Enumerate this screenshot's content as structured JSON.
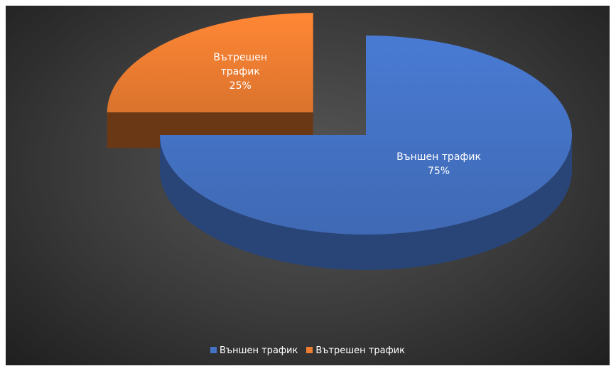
{
  "chart_data": {
    "type": "pie",
    "categories": [
      "Външен трафик",
      "Вътрешен трафик"
    ],
    "values": [
      75,
      25
    ],
    "value_labels": [
      "75%",
      "25%"
    ],
    "colors": [
      "#4472c4",
      "#ed7d31"
    ],
    "exploded": [
      false,
      true
    ],
    "legend": "bottom"
  }
}
